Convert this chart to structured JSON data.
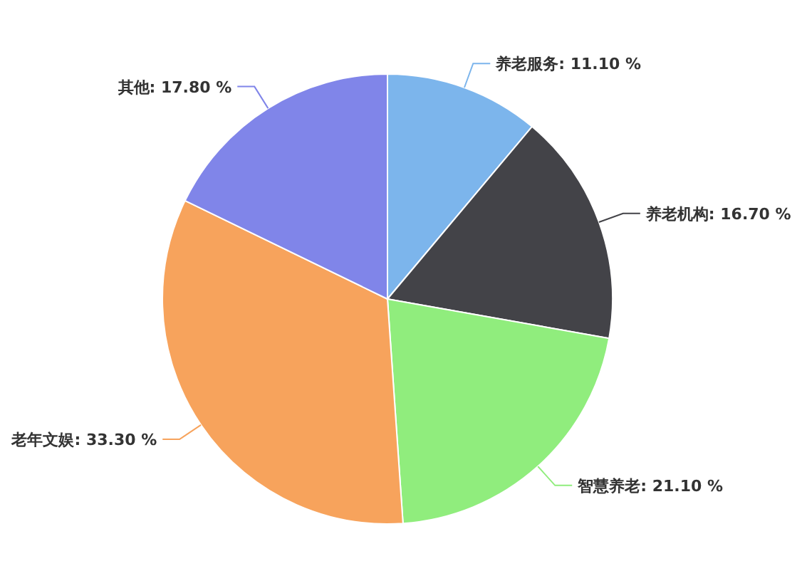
{
  "chart_data": {
    "type": "pie",
    "categories": [
      "养老服务",
      "养老机构",
      "智慧养老",
      "老年文娱",
      "其他"
    ],
    "values": [
      11.1,
      16.7,
      21.1,
      33.3,
      17.8
    ],
    "colors": [
      "#7cb5ec",
      "#434348",
      "#90ed7d",
      "#f7a35c",
      "#8085e9"
    ],
    "value_labels": [
      "11.10 %",
      "16.70 %",
      "21.10 %",
      "33.30 %",
      "17.80 %"
    ]
  }
}
